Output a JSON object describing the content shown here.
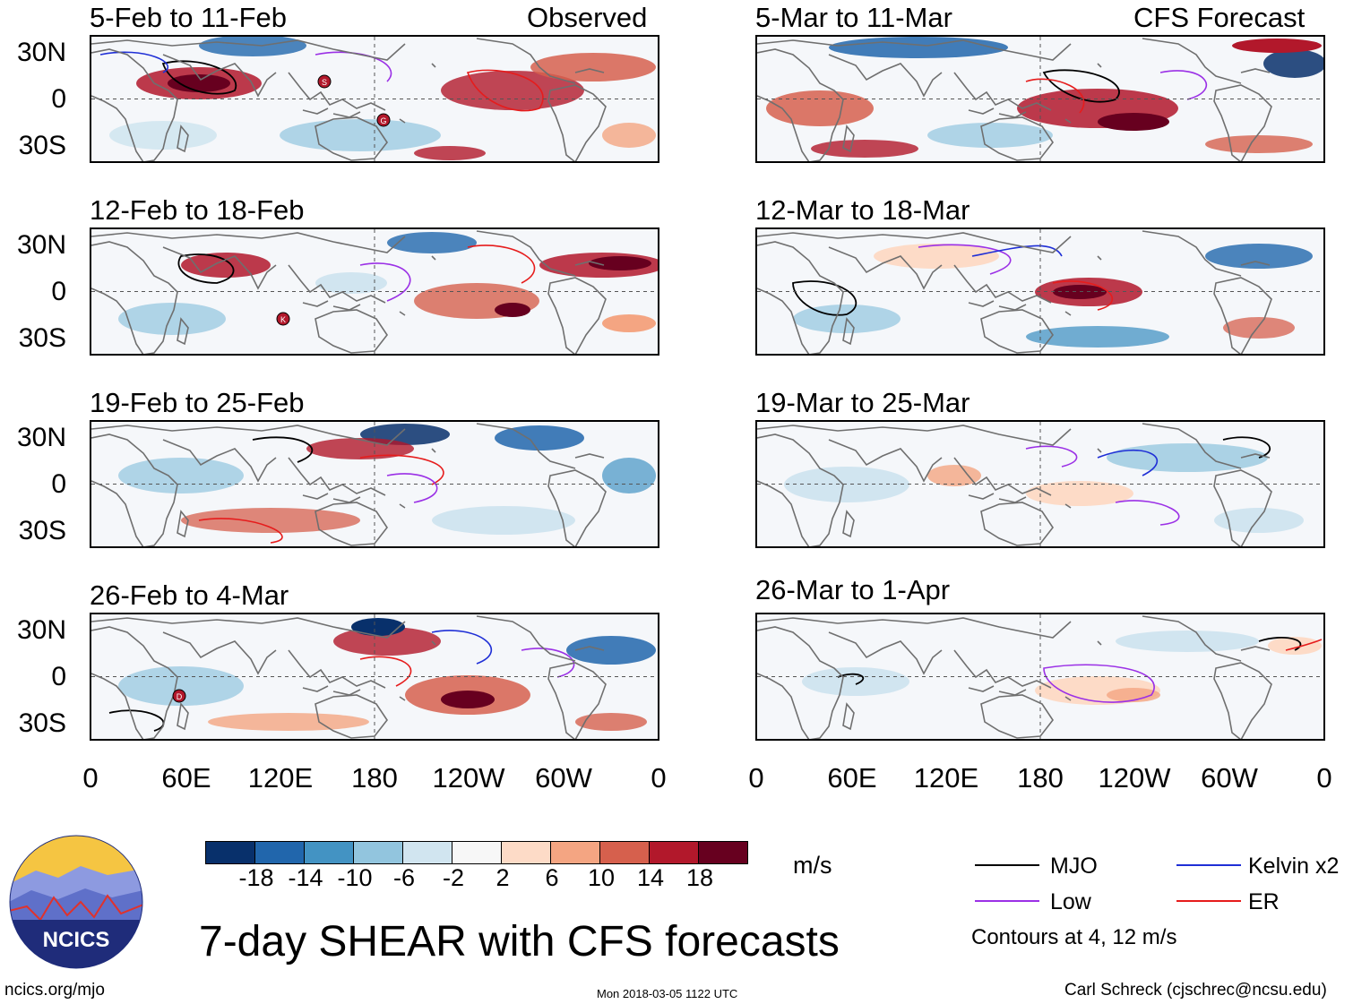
{
  "panels": [
    {
      "title": "5-Feb to 11-Feb",
      "tag": "Observed"
    },
    {
      "title": "5-Mar to 11-Mar",
      "tag": "CFS Forecast"
    },
    {
      "title": "12-Feb to 18-Feb",
      "tag": ""
    },
    {
      "title": "12-Mar to 18-Mar",
      "tag": ""
    },
    {
      "title": "19-Feb to 25-Feb",
      "tag": ""
    },
    {
      "title": "19-Mar to 25-Mar",
      "tag": ""
    },
    {
      "title": "26-Feb to 4-Mar",
      "tag": ""
    },
    {
      "title": "26-Mar to 1-Apr",
      "tag": ""
    }
  ],
  "lat_labels": [
    "30N",
    "0",
    "30S"
  ],
  "lon_labels": [
    "0",
    "60E",
    "120E",
    "180",
    "120W",
    "60W",
    "0"
  ],
  "storm_markers": [
    {
      "panel": 0,
      "label": "S"
    },
    {
      "panel": 0,
      "label": "G"
    },
    {
      "panel": 2,
      "label": "K"
    },
    {
      "panel": 6,
      "label": "D"
    }
  ],
  "colorbar": {
    "colors": [
      "#08306b",
      "#2166ac",
      "#4393c3",
      "#92c5de",
      "#d1e5f0",
      "#f7f7f7",
      "#fddbc7",
      "#f4a582",
      "#d6604d",
      "#b2182b",
      "#67001f"
    ],
    "tick_labels": [
      "-18",
      "-14",
      "-10",
      "-6",
      "-2",
      "2",
      "6",
      "10",
      "14",
      "18"
    ],
    "units": "m/s"
  },
  "legend": {
    "items": [
      {
        "label": "MJO",
        "color": "#000000"
      },
      {
        "label": "Kelvin x2",
        "color": "#1f2fd6"
      },
      {
        "label": "Low",
        "color": "#9b30e6"
      },
      {
        "label": "ER",
        "color": "#e61c1c"
      }
    ],
    "note": "Contours at 4, 12 m/s"
  },
  "logo": {
    "text": "NCICS"
  },
  "title": "7-day SHEAR with CFS forecasts",
  "footer": {
    "url": "ncics.org/mjo",
    "timestamp": "Mon 2018-03-05 1122 UTC",
    "author": "Carl Schreck (cjschrec@ncsu.edu)"
  }
}
